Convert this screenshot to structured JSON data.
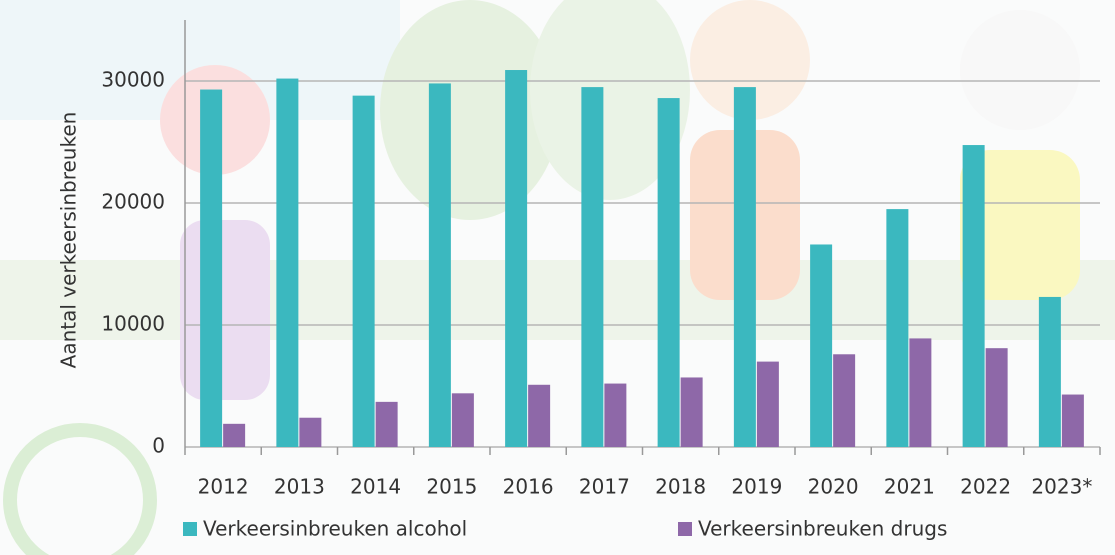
{
  "chart_data": {
    "type": "bar",
    "y_label": "Aantal verkeersinbreuken",
    "categories": [
      "2012",
      "2013",
      "2014",
      "2015",
      "2016",
      "2017",
      "2018",
      "2019",
      "2020",
      "2021",
      "2022",
      "2023*"
    ],
    "series": [
      {
        "name": "Verkeersinbreuken alcohol",
        "color": "#3bb8bf",
        "values": [
          29300,
          30200,
          28800,
          29800,
          30900,
          29500,
          28600,
          29500,
          16600,
          19500,
          24750,
          12300
        ]
      },
      {
        "name": "Verkeersinbreuken drugs",
        "color": "#8e68a8",
        "values": [
          1900,
          2400,
          3700,
          4400,
          5100,
          5200,
          5700,
          7000,
          7600,
          8900,
          8100,
          4300
        ]
      }
    ],
    "ylim": [
      0,
      35000
    ],
    "yticks": [
      0,
      10000,
      20000,
      30000
    ],
    "grid": true
  }
}
